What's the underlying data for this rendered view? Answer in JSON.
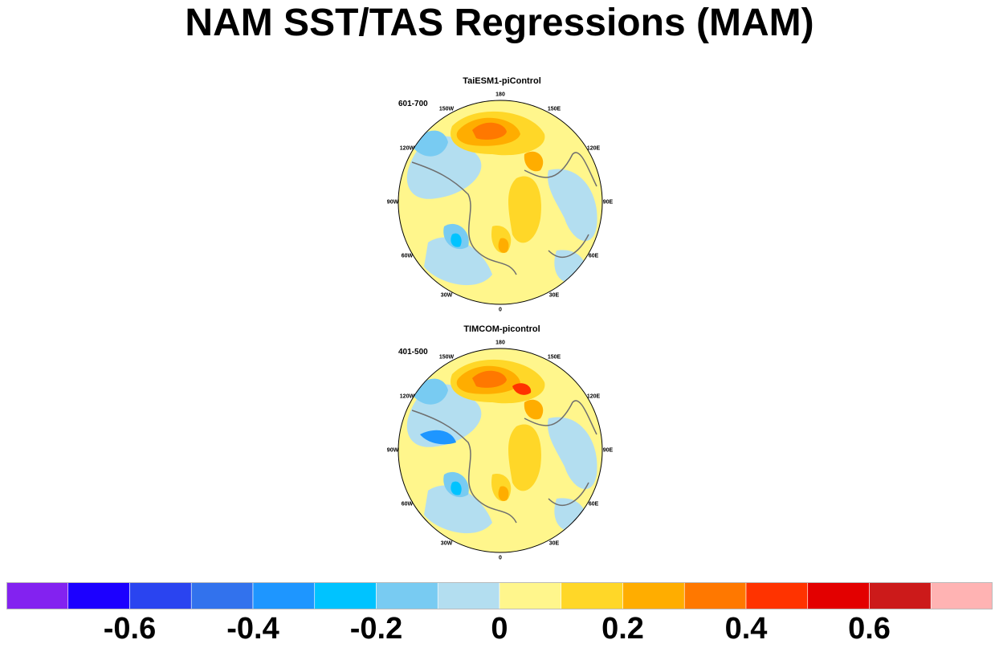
{
  "title": "NAM SST/TAS Regressions (MAM)",
  "panels": [
    {
      "title": "TaiESM1-piControl",
      "period": "601-700",
      "lon_labels": [
        "180",
        "150E",
        "120E",
        "90E",
        "60E",
        "30E",
        "0",
        "30W",
        "60W",
        "90W",
        "120W",
        "150W"
      ]
    },
    {
      "title": "TIMCOM-picontrol",
      "period": "401-500",
      "lon_labels": [
        "180",
        "150E",
        "120E",
        "90E",
        "60E",
        "30E",
        "0",
        "30W",
        "60W",
        "90W",
        "120W",
        "150W"
      ]
    }
  ],
  "colorbar": {
    "colors": [
      "#8322f0",
      "#1c00ff",
      "#2a44f0",
      "#3272ed",
      "#1e96ff",
      "#00c3ff",
      "#78cbf2",
      "#b3def0",
      "#fff68c",
      "#ffd728",
      "#ffad00",
      "#ff7800",
      "#ff3300",
      "#e30000",
      "#cc1a1a",
      "#ffb3b3"
    ],
    "tick_labels": [
      "-0.6",
      "-0.4",
      "-0.2",
      "0",
      "0.2",
      "0.4",
      "0.6"
    ]
  }
}
